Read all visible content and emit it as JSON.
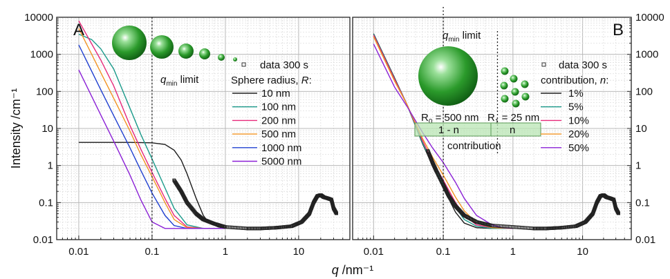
{
  "figure": {
    "y_axis_label": "Intensity /cm⁻¹",
    "x_axis_label_italic": "q",
    "x_axis_label_unit": " /nm⁻¹",
    "colors": {
      "c1": "#1a1a1a",
      "c2": "#1a9a8a",
      "c3": "#e8287a",
      "c4": "#f29322",
      "c5": "#1f3fd0",
      "c6": "#8a1fd6",
      "sphere": "#1e9e2a",
      "band": "#b9e6b4"
    }
  },
  "chart_data": [
    {
      "panel": "A",
      "type": "line",
      "x_scale": "log",
      "y_scale": "log",
      "xlim": [
        0.005,
        50
      ],
      "ylim": [
        0.01,
        10000
      ],
      "x_tick_labels": [
        "0.01",
        "0.1",
        "1",
        "10"
      ],
      "y_tick_labels": [
        "0.01",
        "0.1",
        "1",
        "10",
        "100",
        "1000",
        "10000"
      ],
      "grid": true,
      "legend_placement": "right",
      "legend_title": "Sphere radius, R:",
      "legend_title_prefix": "Sphere radius, ",
      "legend_title_var": "R",
      "legend_title_suffix": ":",
      "vline_label_var": "q",
      "vline_label_sub": "min",
      "vline_label_rest": " limit",
      "vline_x": 0.1,
      "data_series": {
        "name": "data 300 s",
        "points": [
          [
            0.2,
            0.4
          ],
          [
            0.25,
            0.2
          ],
          [
            0.3,
            0.1
          ],
          [
            0.4,
            0.05
          ],
          [
            0.5,
            0.035
          ],
          [
            0.7,
            0.027
          ],
          [
            1,
            0.022
          ],
          [
            2,
            0.02
          ],
          [
            3,
            0.02
          ],
          [
            5,
            0.021
          ],
          [
            8,
            0.023
          ],
          [
            11,
            0.03
          ],
          [
            14,
            0.05
          ],
          [
            16,
            0.1
          ],
          [
            18,
            0.15
          ],
          [
            20,
            0.16
          ],
          [
            22,
            0.14
          ],
          [
            25,
            0.13
          ],
          [
            28,
            0.12
          ],
          [
            30,
            0.07
          ],
          [
            33,
            0.05
          ]
        ]
      },
      "series": [
        {
          "name": "10 nm",
          "color_key": "c1",
          "points": [
            [
              0.01,
              4.2
            ],
            [
              0.05,
              4.2
            ],
            [
              0.1,
              4.1
            ],
            [
              0.15,
              3.7
            ],
            [
              0.2,
              2.6
            ],
            [
              0.25,
              1.4
            ],
            [
              0.3,
              0.6
            ],
            [
              0.4,
              0.13
            ],
            [
              0.5,
              0.045
            ],
            [
              0.6,
              0.028
            ],
            [
              0.8,
              0.022
            ],
            [
              1,
              0.02
            ]
          ]
        },
        {
          "name": "100 nm",
          "color_key": "c2",
          "points": [
            [
              0.01,
              3500
            ],
            [
              0.015,
              2500
            ],
            [
              0.02,
              1400
            ],
            [
              0.03,
              400
            ],
            [
              0.05,
              35
            ],
            [
              0.07,
              7
            ],
            [
              0.1,
              1.5
            ],
            [
              0.15,
              0.25
            ],
            [
              0.2,
              0.07
            ],
            [
              0.3,
              0.025
            ],
            [
              0.5,
              0.02
            ],
            [
              1,
              0.02
            ]
          ]
        },
        {
          "name": "200 nm",
          "color_key": "c3",
          "points": [
            [
              0.01,
              8000
            ],
            [
              0.02,
              700
            ],
            [
              0.03,
              140
            ],
            [
              0.05,
              12
            ],
            [
              0.07,
              2.8
            ],
            [
              0.1,
              0.65
            ],
            [
              0.15,
              0.13
            ],
            [
              0.2,
              0.045
            ],
            [
              0.3,
              0.022
            ],
            [
              0.5,
              0.02
            ],
            [
              1,
              0.02
            ]
          ]
        },
        {
          "name": "500 nm",
          "color_key": "c4",
          "points": [
            [
              0.01,
              5000
            ],
            [
              0.02,
              320
            ],
            [
              0.03,
              65
            ],
            [
              0.05,
              8.5
            ],
            [
              0.07,
              2
            ],
            [
              0.1,
              0.5
            ],
            [
              0.15,
              0.1
            ],
            [
              0.2,
              0.035
            ],
            [
              0.3,
              0.021
            ],
            [
              0.5,
              0.02
            ],
            [
              1,
              0.02
            ]
          ]
        },
        {
          "name": "1000 nm",
          "color_key": "c5",
          "points": [
            [
              0.01,
              1800
            ],
            [
              0.02,
              110
            ],
            [
              0.03,
              22
            ],
            [
              0.05,
              3
            ],
            [
              0.07,
              0.75
            ],
            [
              0.1,
              0.18
            ],
            [
              0.15,
              0.045
            ],
            [
              0.2,
              0.024
            ],
            [
              0.3,
              0.02
            ],
            [
              1,
              0.02
            ]
          ]
        },
        {
          "name": "5000 nm",
          "color_key": "c6",
          "points": [
            [
              0.01,
              380
            ],
            [
              0.02,
              23
            ],
            [
              0.03,
              4.5
            ],
            [
              0.05,
              0.55
            ],
            [
              0.07,
              0.12
            ],
            [
              0.1,
              0.03
            ],
            [
              0.15,
              0.02
            ],
            [
              1,
              0.02
            ]
          ]
        }
      ]
    },
    {
      "panel": "B",
      "type": "line",
      "x_scale": "log",
      "y_scale": "log",
      "xlim": [
        0.005,
        50
      ],
      "ylim": [
        0.01,
        10000
      ],
      "x_tick_labels": [
        "0.01",
        "0.1",
        "1",
        "10"
      ],
      "y_tick_labels": [
        "0.01",
        "0.1",
        "1",
        "10",
        "100",
        "1000",
        "10000"
      ],
      "grid": true,
      "legend_placement": "right",
      "legend_title": "contribution, n:",
      "legend_title_prefix": "contribution, ",
      "legend_title_var": "n",
      "legend_title_suffix": ":",
      "vline_label_var": "q",
      "vline_label_sub": "min",
      "vline_label_rest": " limit",
      "vline_x": 0.1,
      "vline2_x": 0.6,
      "r0_prefix": "R",
      "r0_sub": "0",
      "r0_rest": " = 500 nm",
      "r1_prefix": "R",
      "r1_sub": "1",
      "r1_rest": " = 25 nm",
      "band_left": "1 - n",
      "band_right": "n",
      "band_caption": "contribution",
      "data_series": {
        "name": "data 300 s",
        "points": [
          [
            0.06,
            2.5
          ],
          [
            0.07,
            1.2
          ],
          [
            0.08,
            0.7
          ],
          [
            0.1,
            0.3
          ],
          [
            0.12,
            0.15
          ],
          [
            0.15,
            0.08
          ],
          [
            0.2,
            0.045
          ],
          [
            0.3,
            0.03
          ],
          [
            0.5,
            0.024
          ],
          [
            1,
            0.022
          ],
          [
            2,
            0.02
          ],
          [
            3,
            0.02
          ],
          [
            5,
            0.021
          ],
          [
            8,
            0.023
          ],
          [
            11,
            0.03
          ],
          [
            14,
            0.05
          ],
          [
            16,
            0.1
          ],
          [
            18,
            0.15
          ],
          [
            20,
            0.16
          ],
          [
            22,
            0.14
          ],
          [
            25,
            0.13
          ],
          [
            28,
            0.12
          ],
          [
            30,
            0.07
          ],
          [
            33,
            0.05
          ]
        ]
      },
      "series": [
        {
          "name": "1%",
          "color_key": "c1",
          "points": [
            [
              0.01,
              3600
            ],
            [
              0.02,
              230
            ],
            [
              0.03,
              45
            ],
            [
              0.05,
              4
            ],
            [
              0.07,
              1
            ],
            [
              0.1,
              0.25
            ],
            [
              0.15,
              0.055
            ],
            [
              0.2,
              0.028
            ],
            [
              0.3,
              0.021
            ],
            [
              0.5,
              0.02
            ],
            [
              1,
              0.02
            ]
          ]
        },
        {
          "name": "5%",
          "color_key": "c2",
          "points": [
            [
              0.01,
              3500
            ],
            [
              0.02,
              220
            ],
            [
              0.03,
              45
            ],
            [
              0.05,
              4.2
            ],
            [
              0.07,
              1.1
            ],
            [
              0.1,
              0.3
            ],
            [
              0.15,
              0.075
            ],
            [
              0.2,
              0.035
            ],
            [
              0.3,
              0.023
            ],
            [
              0.5,
              0.02
            ],
            [
              1,
              0.02
            ]
          ]
        },
        {
          "name": "10%",
          "color_key": "c3",
          "points": [
            [
              0.01,
              3300
            ],
            [
              0.02,
              210
            ],
            [
              0.03,
              45
            ],
            [
              0.05,
              4.8
            ],
            [
              0.07,
              1.3
            ],
            [
              0.1,
              0.4
            ],
            [
              0.15,
              0.1
            ],
            [
              0.2,
              0.045
            ],
            [
              0.3,
              0.025
            ],
            [
              0.5,
              0.021
            ],
            [
              1,
              0.02
            ]
          ]
        },
        {
          "name": "20%",
          "color_key": "c4",
          "points": [
            [
              0.01,
              3000
            ],
            [
              0.02,
              190
            ],
            [
              0.03,
              45
            ],
            [
              0.05,
              5.5
            ],
            [
              0.07,
              1.7
            ],
            [
              0.1,
              0.55
            ],
            [
              0.15,
              0.14
            ],
            [
              0.2,
              0.06
            ],
            [
              0.3,
              0.028
            ],
            [
              0.5,
              0.021
            ],
            [
              1,
              0.02
            ]
          ]
        },
        {
          "name": "50%",
          "color_key": "c6",
          "points": [
            [
              0.01,
              1900
            ],
            [
              0.02,
              130
            ],
            [
              0.03,
              40
            ],
            [
              0.05,
              8
            ],
            [
              0.07,
              3
            ],
            [
              0.1,
              1.2
            ],
            [
              0.15,
              0.35
            ],
            [
              0.2,
              0.13
            ],
            [
              0.3,
              0.045
            ],
            [
              0.5,
              0.025
            ],
            [
              0.7,
              0.021
            ],
            [
              1,
              0.02
            ]
          ]
        }
      ]
    }
  ]
}
